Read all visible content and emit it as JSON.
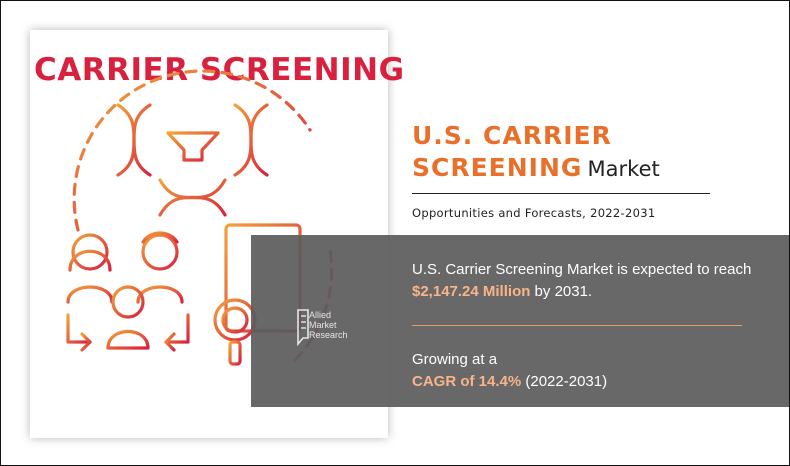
{
  "card": {
    "title": "CARRIER SCREENING",
    "colors": {
      "title": "#d8203f",
      "gradient_start": "#f2a33a",
      "gradient_end": "#d8203f"
    },
    "icons": [
      "dna-helix-icon",
      "down-arrow-icon",
      "family-icon",
      "document-icon",
      "magnifier-icon",
      "cycle-arrows-icon"
    ]
  },
  "report": {
    "title_line1": "U.S. CARRIER",
    "title_line2_accent": "SCREENING",
    "title_line2_rest": "Market",
    "subtitle": "Opportunities and Forecasts, 2022-2031"
  },
  "stats": {
    "stat1_pre": "U.S. Carrier Screening Market is expected to reach ",
    "stat1_highlight": "$2,147.24 Million",
    "stat1_post": " by 2031.",
    "stat2_pre": "Growing at a",
    "stat2_highlight": "CAGR of 14.4%",
    "stat2_post": " (2022-2031)"
  },
  "brand": {
    "logo_text": "Allied\nMarket\nResearch"
  },
  "colors": {
    "accent": "#e8702a",
    "panel": "#5c5c5c",
    "highlight": "#f9b48a"
  }
}
